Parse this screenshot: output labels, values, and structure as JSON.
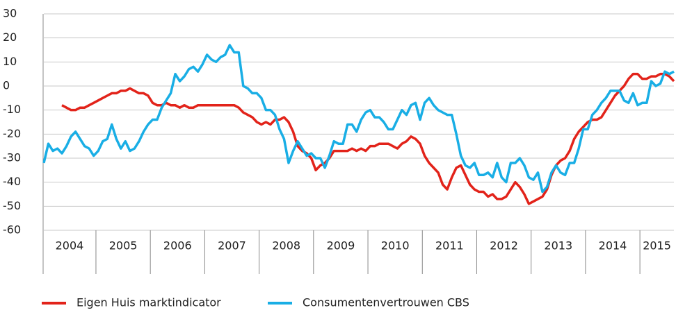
{
  "chart_data": {
    "type": "line",
    "categories": [
      "2004",
      null,
      null,
      null,
      null,
      null,
      null,
      null,
      null,
      null,
      null,
      null,
      "2005",
      null,
      null,
      null,
      null,
      null,
      null,
      null,
      null,
      null,
      null,
      null,
      "2006",
      null,
      null,
      null,
      null,
      null,
      null,
      null,
      null,
      null,
      null,
      null,
      "2007",
      null,
      null,
      null,
      null,
      null,
      null,
      null,
      null,
      null,
      null,
      null,
      "2008",
      null,
      null,
      null,
      null,
      null,
      null,
      null,
      null,
      null,
      null,
      null,
      "2009",
      null,
      null,
      null,
      null,
      null,
      null,
      null,
      null,
      null,
      null,
      null,
      "2010",
      null,
      null,
      null,
      null,
      null,
      null,
      null,
      null,
      null,
      null,
      null,
      "2011",
      null,
      null,
      null,
      null,
      null,
      null,
      null,
      null,
      null,
      null,
      null,
      "2012",
      null,
      null,
      null,
      null,
      null,
      null,
      null,
      null,
      null,
      null,
      null,
      "2013",
      null,
      null,
      null,
      null,
      null,
      null,
      null,
      null,
      null,
      null,
      null,
      "2014",
      null,
      null,
      null,
      null,
      null,
      null,
      null,
      null,
      null,
      null,
      null,
      "2015",
      null,
      null,
      null,
      null,
      null,
      null,
      null
    ],
    "series": [
      {
        "name": "Eigen Huis marktindicator",
        "color": "#e2231a",
        "values": [
          null,
          null,
          null,
          null,
          -8,
          -9,
          -10,
          -10,
          -9,
          -9,
          -8,
          -7,
          -6,
          -5,
          -4,
          -3,
          -3,
          -2,
          -2,
          -1,
          -2,
          -3,
          -3,
          -4,
          -7,
          -8,
          -8,
          -7,
          -8,
          -8,
          -9,
          -8,
          -9,
          -9,
          -8,
          -8,
          -8,
          -8,
          -8,
          -8,
          -8,
          -8,
          -8,
          -9,
          -11,
          -12,
          -13,
          -15,
          -16,
          -15,
          -16,
          -14,
          -14,
          -13,
          -15,
          -19,
          -25,
          -27,
          -28,
          -30,
          -35,
          -33,
          -32,
          -30,
          -27,
          -27,
          -27,
          -27,
          -26,
          -27,
          -26,
          -27,
          -25,
          -25,
          -24,
          -24,
          -24,
          -25,
          -26,
          -24,
          -23,
          -21,
          -22,
          -24,
          -29,
          -32,
          -34,
          -36,
          -41,
          -43,
          -38,
          -34,
          -33,
          -37,
          -41,
          -43,
          -44,
          -44,
          -46,
          -45,
          -47,
          -47,
          -46,
          -43,
          -40,
          -42,
          -45,
          -49,
          -48,
          -47,
          -46,
          -43,
          -37,
          -33,
          -31,
          -30,
          -27,
          -22,
          -19,
          -17,
          -15,
          -14,
          -14,
          -13,
          -10,
          -7,
          -4,
          -2,
          0,
          3,
          5,
          5,
          3,
          3,
          4,
          4,
          5,
          5,
          4,
          2
        ]
      },
      {
        "name": "Consumentenvertrouwen CBS",
        "color": "#19aee5",
        "values": [
          -32,
          -24,
          -27,
          -26,
          -28,
          -25,
          -21,
          -19,
          -22,
          -25,
          -26,
          -29,
          -27,
          -23,
          -22,
          -16,
          -22,
          -26,
          -23,
          -27,
          -26,
          -23,
          -19,
          -16,
          -14,
          -14,
          -9,
          -6,
          -3,
          5,
          2,
          4,
          7,
          8,
          6,
          9,
          13,
          11,
          10,
          12,
          13,
          17,
          14,
          14,
          0,
          -1,
          -3,
          -3,
          -5,
          -10,
          -10,
          -12,
          -18,
          -22,
          -32,
          -27,
          -23,
          -26,
          -29,
          -28,
          -30,
          -30,
          -34,
          -29,
          -23,
          -24,
          -24,
          -16,
          -16,
          -19,
          -14,
          -11,
          -10,
          -13,
          -13,
          -15,
          -18,
          -18,
          -14,
          -10,
          -12,
          -8,
          -7,
          -14,
          -7,
          -5,
          -8,
          -10,
          -11,
          -12,
          -12,
          -20,
          -29,
          -33,
          -34,
          -32,
          -37,
          -37,
          -36,
          -38,
          -32,
          -38,
          -40,
          -32,
          -32,
          -30,
          -33,
          -38,
          -39,
          -36,
          -44,
          -42,
          -36,
          -33,
          -36,
          -37,
          -32,
          -32,
          -26,
          -18,
          -18,
          -12,
          -10,
          -7,
          -5,
          -2,
          -2,
          -2,
          -6,
          -7,
          -3,
          -8,
          -7,
          -7,
          2,
          0,
          1,
          6,
          5,
          6
        ]
      }
    ],
    "ylim": [
      -60,
      30
    ],
    "yticks": [
      30,
      20,
      10,
      0,
      -10,
      -20,
      -30,
      -40,
      -50,
      -60
    ],
    "grid": true
  }
}
